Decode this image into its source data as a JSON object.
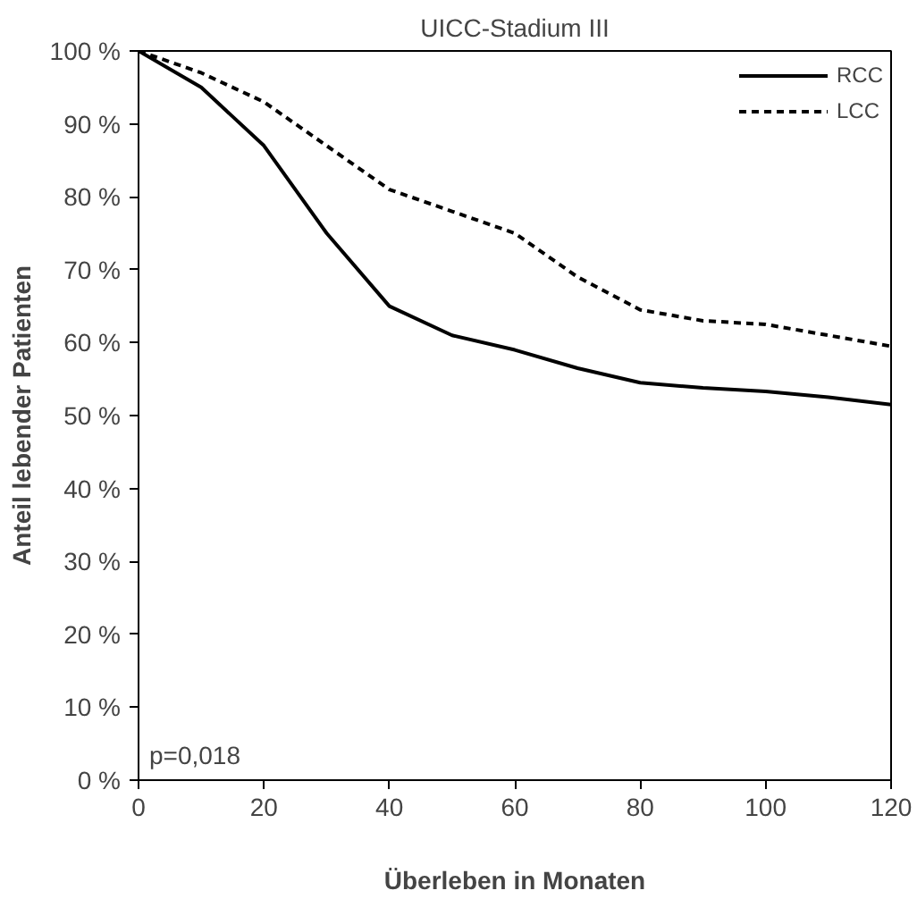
{
  "chart_data": {
    "type": "line",
    "title": "UICC-Stadium III",
    "xlabel": "Überleben in Monaten",
    "ylabel": "Anteil lebender Patienten",
    "x": [
      0,
      10,
      20,
      30,
      40,
      50,
      60,
      70,
      80,
      90,
      100,
      110,
      120
    ],
    "series": [
      {
        "name": "RCC",
        "color": "#000000",
        "line_style": "solid",
        "values": [
          100,
          95,
          87,
          75,
          65,
          61,
          59,
          56.5,
          54.5,
          53.8,
          53.3,
          52.5,
          51.5
        ]
      },
      {
        "name": "LCC",
        "color": "#000000",
        "line_style": "dashed",
        "values": [
          100,
          97,
          93,
          87,
          81,
          78,
          75,
          69,
          64.5,
          63,
          62.5,
          61,
          59.5
        ]
      }
    ],
    "xlim": [
      0,
      120
    ],
    "xticks": [
      0,
      20,
      40,
      60,
      80,
      100,
      120
    ],
    "ylim": [
      0,
      100
    ],
    "yticks": [
      {
        "value": 0,
        "label": "0 %"
      },
      {
        "value": 10,
        "label": "10 %"
      },
      {
        "value": 20,
        "label": "20 %"
      },
      {
        "value": 30,
        "label": "30 %"
      },
      {
        "value": 40,
        "label": "40 %"
      },
      {
        "value": 50,
        "label": "50 %"
      },
      {
        "value": 60,
        "label": "60 %"
      },
      {
        "value": 70,
        "label": "70 %"
      },
      {
        "value": 80,
        "label": "80 %"
      },
      {
        "value": 90,
        "label": "90 %"
      },
      {
        "value": 100,
        "label": "100 %"
      }
    ],
    "annotations": [
      "p=0,018"
    ],
    "grid": false,
    "legend": "top right"
  }
}
